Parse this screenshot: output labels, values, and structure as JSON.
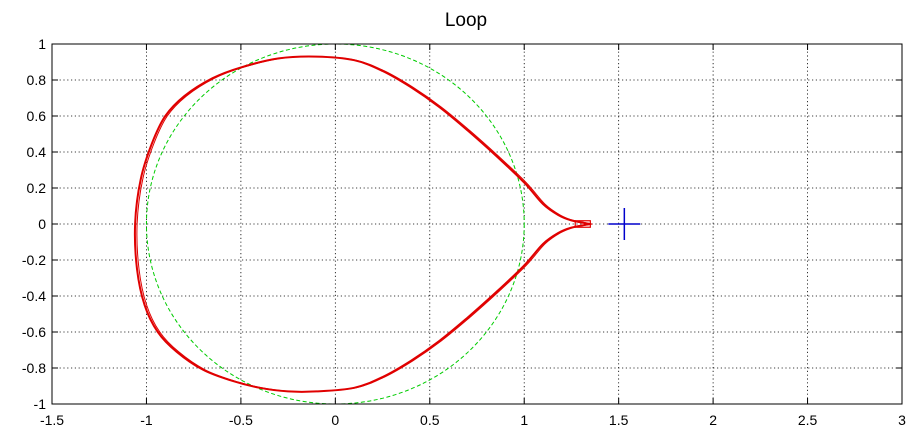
{
  "chart_data": {
    "type": "line",
    "title": "Loop",
    "xlim": [
      -1.5,
      3
    ],
    "ylim": [
      -1,
      1
    ],
    "xticks": [
      -1.5,
      -1,
      -0.5,
      0,
      0.5,
      1,
      1.5,
      2,
      2.5,
      3
    ],
    "yticks": [
      -1,
      -0.8,
      -0.6,
      -0.4,
      -0.2,
      0,
      0.2,
      0.4,
      0.6,
      0.8,
      1
    ],
    "xtick_labels": [
      "-1.5",
      "-1",
      "-0.5",
      "0",
      "0.5",
      "1",
      "1.5",
      "2",
      "2.5",
      "3"
    ],
    "ytick_labels": [
      "-1",
      "-0.8",
      "-0.6",
      "-0.4",
      "-0.2",
      "0",
      "0.2",
      "0.4",
      "0.6",
      "0.8",
      "1"
    ],
    "grid": true,
    "colors": {
      "loop": "#e00000",
      "unit_circle": "#00cc00",
      "critical_point": "#0000cc"
    },
    "series": [
      {
        "style": "solid",
        "x": [
          1.35,
          1.25,
          1.18,
          1.1,
          1.0,
          0.85,
          0.7,
          0.55,
          0.4,
          0.25,
          0.1,
          -0.1,
          -0.3,
          -0.5,
          -0.65,
          -0.8,
          -0.9,
          -0.97,
          -1.03,
          -1.06,
          -1.05,
          -1.01,
          -0.94,
          -0.84,
          -0.7,
          -0.55,
          -0.4,
          -0.25,
          -0.1,
          0.1,
          0.25,
          0.4,
          0.55,
          0.7,
          0.85,
          1.0,
          1.1,
          1.18,
          1.25,
          1.35
        ],
        "y": [
          0.0,
          0.02,
          0.05,
          0.11,
          0.23,
          0.38,
          0.52,
          0.65,
          0.76,
          0.85,
          0.91,
          0.93,
          0.92,
          0.87,
          0.81,
          0.71,
          0.6,
          0.45,
          0.25,
          0.0,
          -0.25,
          -0.45,
          -0.6,
          -0.71,
          -0.81,
          -0.87,
          -0.91,
          -0.93,
          -0.93,
          -0.91,
          -0.85,
          -0.76,
          -0.65,
          -0.52,
          -0.38,
          -0.23,
          -0.11,
          -0.05,
          -0.02,
          0.0
        ]
      },
      {
        "style": "dashed",
        "shape": "circle",
        "center": [
          0,
          0
        ],
        "radius": 1
      },
      {
        "style": "marker",
        "marker": "plus",
        "x": [
          1.53
        ],
        "y": [
          0
        ]
      }
    ]
  }
}
